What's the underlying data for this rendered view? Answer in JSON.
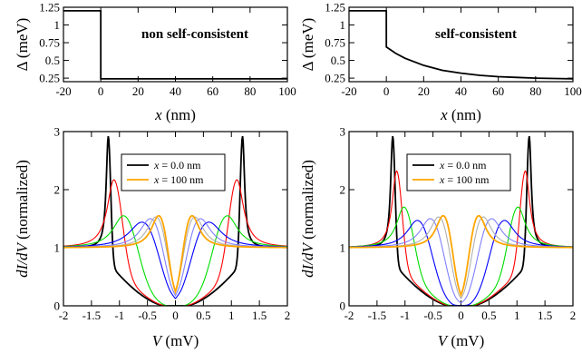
{
  "chart_data": [
    {
      "panel": "top-left",
      "type": "line",
      "annotation": "non self-consistent",
      "xlabel_var": "x",
      "xlabel_unit": " (nm)",
      "ylabel_var": "Δ",
      "ylabel_unit": " (meV)",
      "xlim": [
        -20,
        100
      ],
      "ylim": [
        0.2,
        1.25
      ],
      "xticks": [
        "-20",
        "0",
        "20",
        "40",
        "60",
        "80",
        "100"
      ],
      "yticks": [
        "0.25",
        "0.5",
        "0.75",
        "1",
        "1.25"
      ],
      "series": [
        {
          "color": "#000000",
          "x": [
            -20,
            -0.01,
            0.01,
            100
          ],
          "y": [
            1.2,
            1.2,
            0.24,
            0.24
          ]
        }
      ]
    },
    {
      "panel": "top-right",
      "type": "line",
      "annotation": "self-consistent",
      "xlabel_var": "x",
      "xlabel_unit": " (nm)",
      "ylabel_var": "Δ",
      "ylabel_unit": " (meV)",
      "xlim": [
        -20,
        100
      ],
      "ylim": [
        0.2,
        1.25
      ],
      "xticks": [
        "-20",
        "0",
        "20",
        "40",
        "60",
        "80",
        "100"
      ],
      "yticks": [
        "0.25",
        "0.5",
        "0.75",
        "1",
        "1.25"
      ],
      "series": [
        {
          "color": "#000000",
          "x": [
            -20,
            -0.01,
            0.01,
            5,
            10,
            20,
            30,
            40,
            50,
            60,
            70,
            80,
            90,
            100
          ],
          "y": [
            1.2,
            1.2,
            0.69,
            0.6,
            0.53,
            0.43,
            0.36,
            0.32,
            0.29,
            0.27,
            0.26,
            0.25,
            0.245,
            0.24
          ]
        }
      ]
    },
    {
      "panel": "bottom-left",
      "type": "line",
      "xlabel_var": "V",
      "xlabel_unit": " (mV)",
      "ylabel_var": "dI/dV",
      "ylabel_unit": " (normalized)",
      "xlim": [
        -2,
        2
      ],
      "ylim": [
        0,
        3
      ],
      "xticks": [
        "-2",
        "-1.5",
        "-1",
        "-0.5",
        "0",
        "0.5",
        "1",
        "1.5",
        "2"
      ],
      "yticks": [
        "0",
        "1",
        "2",
        "3"
      ],
      "legend": [
        {
          "label": "x = 0.0 nm",
          "var": "x",
          "rest": " = 0.0 nm",
          "color": "#000000"
        },
        {
          "label": "x = 100 nm",
          "var": "x",
          "rest": " = 100 nm",
          "color": "#ffa500"
        }
      ],
      "series": [
        {
          "color": "#000000",
          "peak_v": 1.2,
          "peak_h": 2.92,
          "width": 0.055
        },
        {
          "color": "#ff0000",
          "peak_v": 1.1,
          "peak_h": 2.17,
          "width": 0.18
        },
        {
          "color": "#00dd00",
          "peak_v": 0.93,
          "peak_h": 1.55,
          "width": 0.28
        },
        {
          "color": "#0000ff",
          "peak_v": 0.6,
          "peak_h": 1.44,
          "width": 0.35
        },
        {
          "color": "#8080ff",
          "peak_v": 0.45,
          "peak_h": 1.5,
          "width": 0.28
        },
        {
          "color": "#b0b0b0",
          "peak_v": 0.35,
          "peak_h": 1.53,
          "width": 0.24
        },
        {
          "color": "#ffa500",
          "peak_v": 0.3,
          "peak_h": 1.55,
          "width": 0.2
        }
      ]
    },
    {
      "panel": "bottom-right",
      "type": "line",
      "xlabel_var": "V",
      "xlabel_unit": " (mV)",
      "ylabel_var": "dI/dV",
      "ylabel_unit": " (normalized)",
      "xlim": [
        -2,
        2
      ],
      "ylim": [
        0,
        3
      ],
      "xticks": [
        "-2",
        "-1.5",
        "-1",
        "-0.5",
        "0",
        "0.5",
        "1",
        "1.5",
        "2"
      ],
      "yticks": [
        "0",
        "1",
        "2",
        "3"
      ],
      "legend": [
        {
          "label": "x = 0.0 nm",
          "var": "x",
          "rest": " = 0.0 nm",
          "color": "#000000"
        },
        {
          "label": "x = 100 nm",
          "var": "x",
          "rest": " = 100 nm",
          "color": "#ffa500"
        }
      ],
      "series": [
        {
          "color": "#000000",
          "peak_v": 1.22,
          "peak_h": 2.92,
          "width": 0.055
        },
        {
          "color": "#ff0000",
          "peak_v": 1.15,
          "peak_h": 2.32,
          "width": 0.12
        },
        {
          "color": "#00dd00",
          "peak_v": 1.02,
          "peak_h": 1.7,
          "width": 0.2
        },
        {
          "color": "#0000ff",
          "peak_v": 0.78,
          "peak_h": 1.47,
          "width": 0.28
        },
        {
          "color": "#8080ff",
          "peak_v": 0.55,
          "peak_h": 1.5,
          "width": 0.27
        },
        {
          "color": "#b0b0b0",
          "peak_v": 0.4,
          "peak_h": 1.53,
          "width": 0.23
        },
        {
          "color": "#ffa500",
          "peak_v": 0.32,
          "peak_h": 1.55,
          "width": 0.2
        }
      ]
    }
  ]
}
